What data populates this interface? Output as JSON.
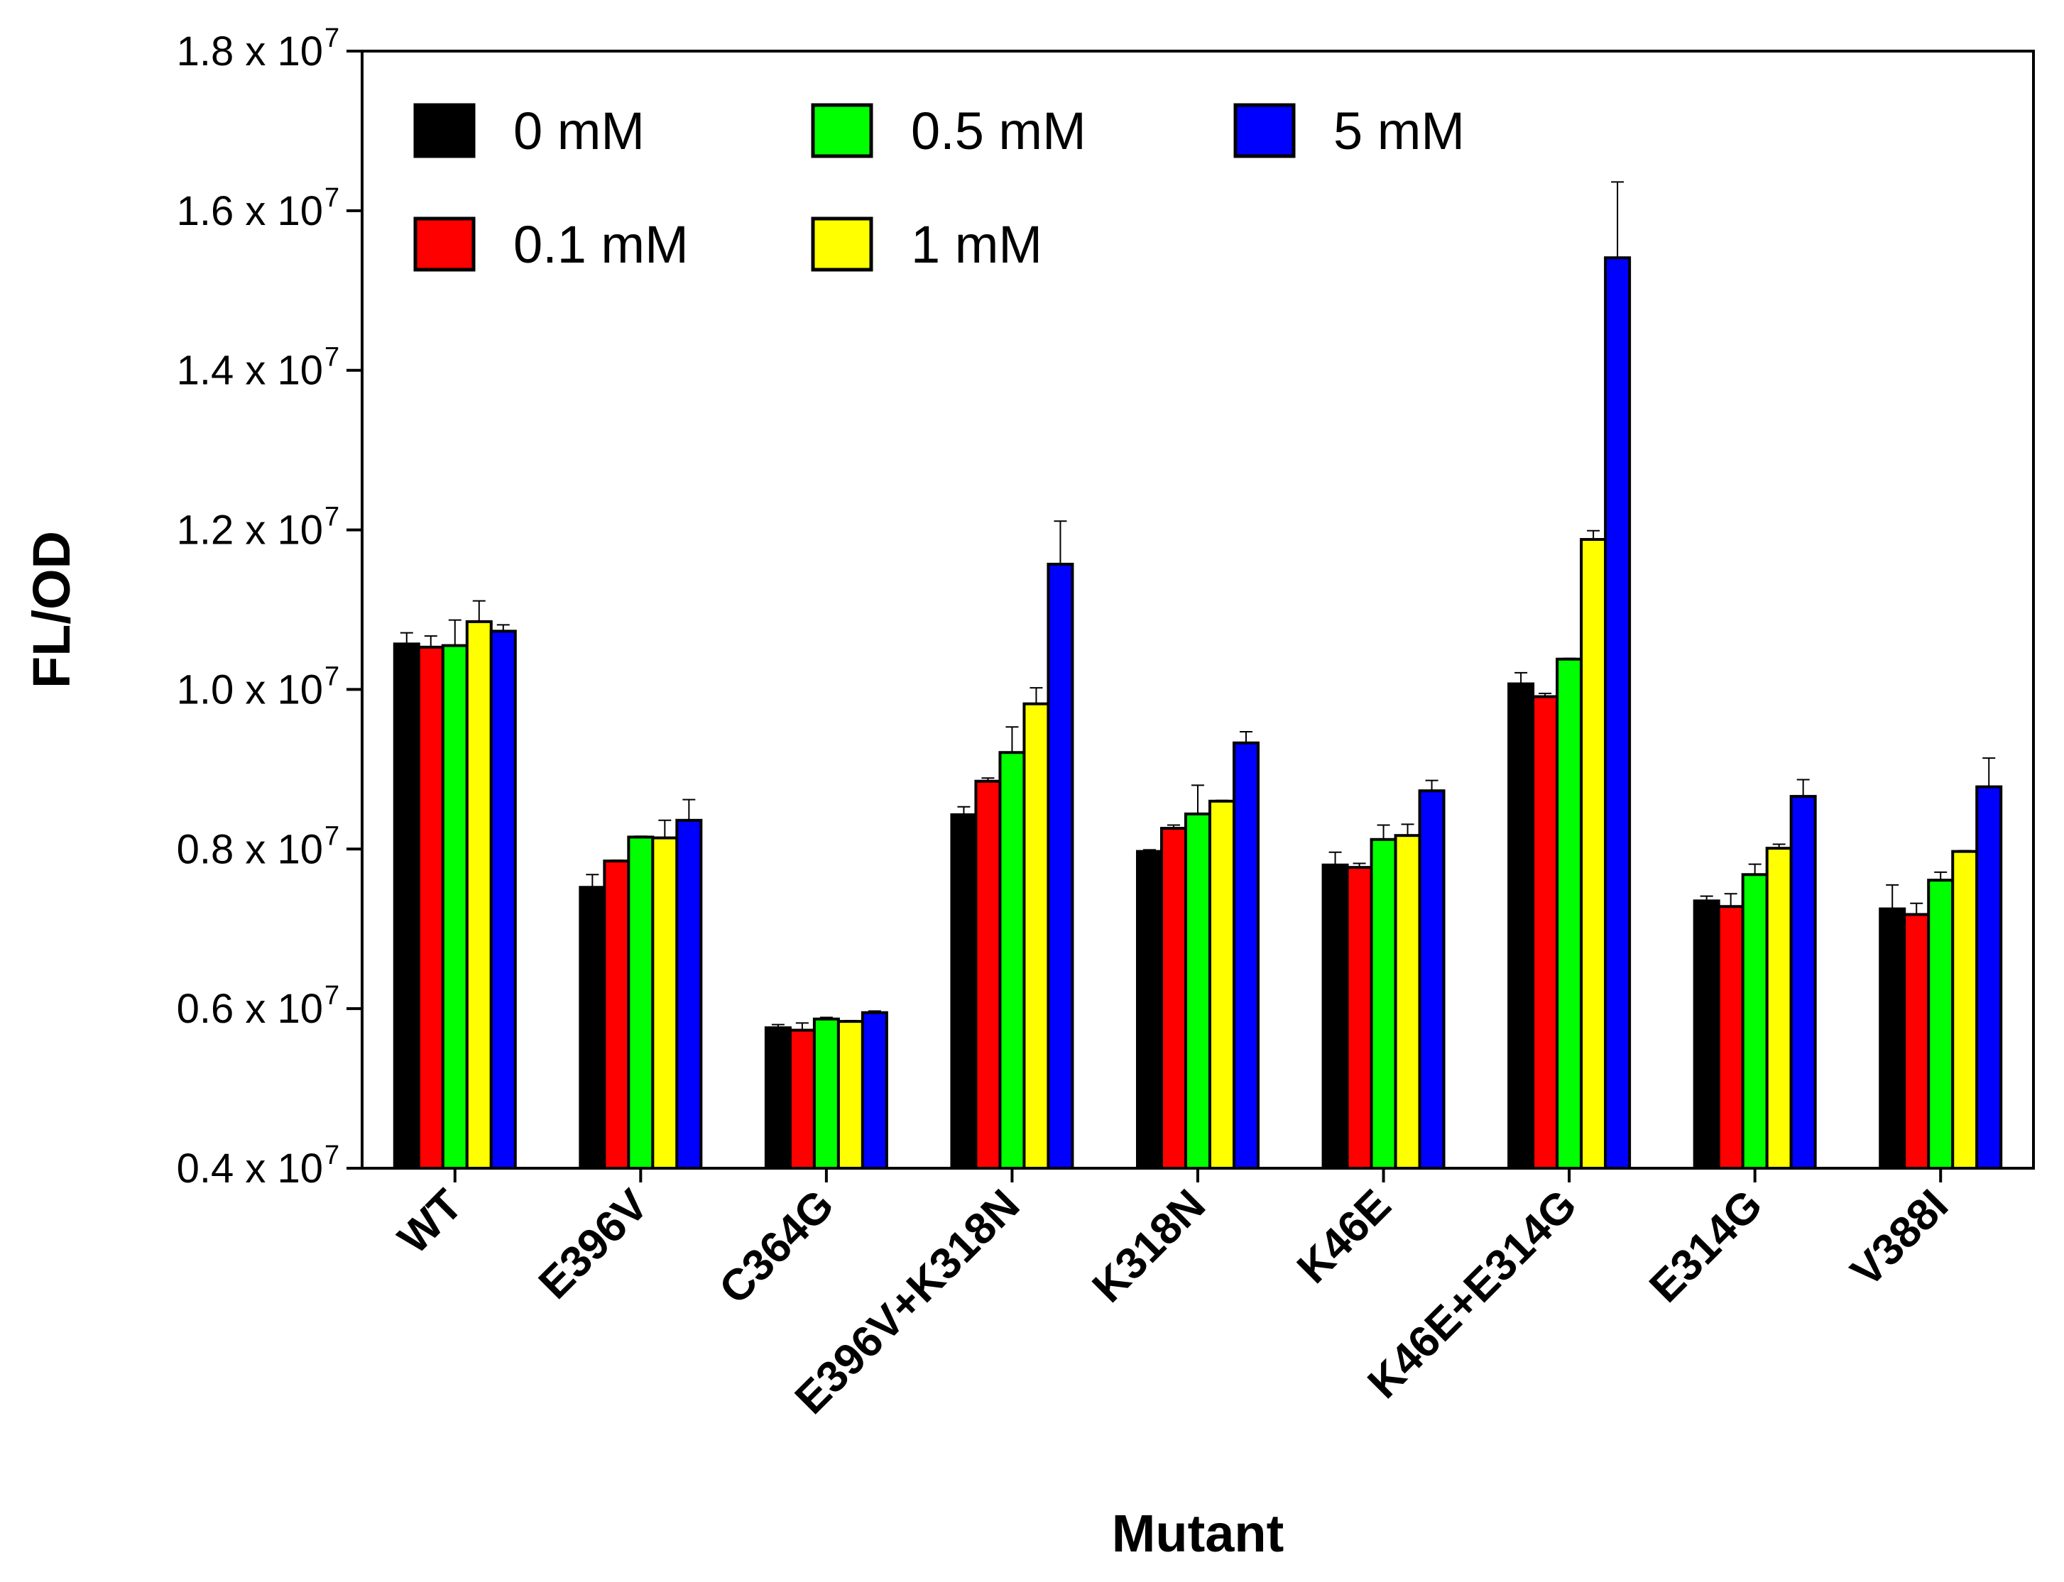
{
  "chart_data": {
    "type": "bar",
    "title": "",
    "xlabel": "Mutant",
    "ylabel": "FL/OD",
    "ylim": [
      0.4,
      1.8
    ],
    "y_multiplier_label": "x 10",
    "y_exponent": "7",
    "yticks": [
      "0.4",
      "0.6",
      "0.8",
      "1.0",
      "1.2",
      "1.4",
      "1.6",
      "1.8"
    ],
    "categories": [
      "WT",
      "E396V",
      "C364G",
      "E396V+K318N",
      "K318N",
      "K46E",
      "K46E+E314G",
      "E314G",
      "V388I"
    ],
    "legend_position": "top-left, inside plot",
    "series": [
      {
        "name": "0 mM",
        "color": "#000000",
        "values": [
          1.057,
          0.752,
          0.576,
          0.843,
          0.797,
          0.78,
          1.007,
          0.735,
          0.725
        ],
        "errors": [
          0.014,
          0.016,
          0.004,
          0.01,
          0.002,
          0.016,
          0.014,
          0.006,
          0.03
        ]
      },
      {
        "name": "0.1 mM",
        "color": "#ff0000",
        "values": [
          1.053,
          0.785,
          0.573,
          0.885,
          0.826,
          0.777,
          0.991,
          0.728,
          0.718
        ],
        "errors": [
          0.014,
          0.001,
          0.009,
          0.004,
          0.004,
          0.005,
          0.004,
          0.016,
          0.014
        ]
      },
      {
        "name": "0.5 mM",
        "color": "#00ff00",
        "values": [
          1.055,
          0.815,
          0.587,
          0.921,
          0.844,
          0.812,
          1.038,
          0.768,
          0.761
        ],
        "errors": [
          0.032,
          0.001,
          0.002,
          0.032,
          0.036,
          0.018,
          0.001,
          0.013,
          0.01
        ]
      },
      {
        "name": "1 mM",
        "color": "#ffff00",
        "values": [
          1.085,
          0.814,
          0.584,
          0.982,
          0.86,
          0.817,
          1.188,
          0.801,
          0.797
        ],
        "errors": [
          0.026,
          0.022,
          0.001,
          0.02,
          0.001,
          0.014,
          0.011,
          0.005,
          0.001
        ]
      },
      {
        "name": "5 mM",
        "color": "#0000ff",
        "values": [
          1.073,
          0.836,
          0.595,
          1.157,
          0.933,
          0.873,
          1.541,
          0.866,
          0.878
        ],
        "errors": [
          0.008,
          0.026,
          0.002,
          0.054,
          0.014,
          0.013,
          0.095,
          0.021,
          0.036
        ]
      }
    ]
  }
}
